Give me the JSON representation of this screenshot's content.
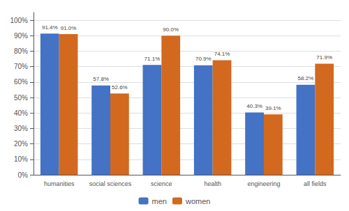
{
  "chart_data": {
    "type": "bar",
    "categories": [
      "humanities",
      "social sciences",
      "science",
      "health",
      "engineering",
      "all fields"
    ],
    "series": [
      {
        "name": "men",
        "color": "#4472C4",
        "values": [
          91.4,
          57.8,
          71.1,
          70.9,
          40.3,
          58.2
        ],
        "value_labels": [
          "91.4%",
          "57.8%",
          "71.1%",
          "70.9%",
          "40.3%",
          "58.2%"
        ]
      },
      {
        "name": "women",
        "color": "#D2691E",
        "values": [
          91.0,
          52.6,
          90.0,
          74.1,
          39.1,
          71.9
        ],
        "value_labels": [
          "91.0%",
          "52.6%",
          "90.0%",
          "74.1%",
          "39.1%",
          "71.9%"
        ]
      }
    ],
    "ylim": [
      0,
      105
    ],
    "yticks": [
      {
        "value": 0,
        "label": "0%"
      },
      {
        "value": 10,
        "label": "10%"
      },
      {
        "value": 20,
        "label": "20%"
      },
      {
        "value": 30,
        "label": "30%"
      },
      {
        "value": 40,
        "label": "40%"
      },
      {
        "value": 50,
        "label": "50%"
      },
      {
        "value": 60,
        "label": "60%"
      },
      {
        "value": 70,
        "label": "70%"
      },
      {
        "value": 80,
        "label": "80%"
      },
      {
        "value": 90,
        "label": "90%"
      },
      {
        "value": 100,
        "label": "100%"
      }
    ],
    "grid": true,
    "legend": "bottom",
    "data_labels": true
  }
}
